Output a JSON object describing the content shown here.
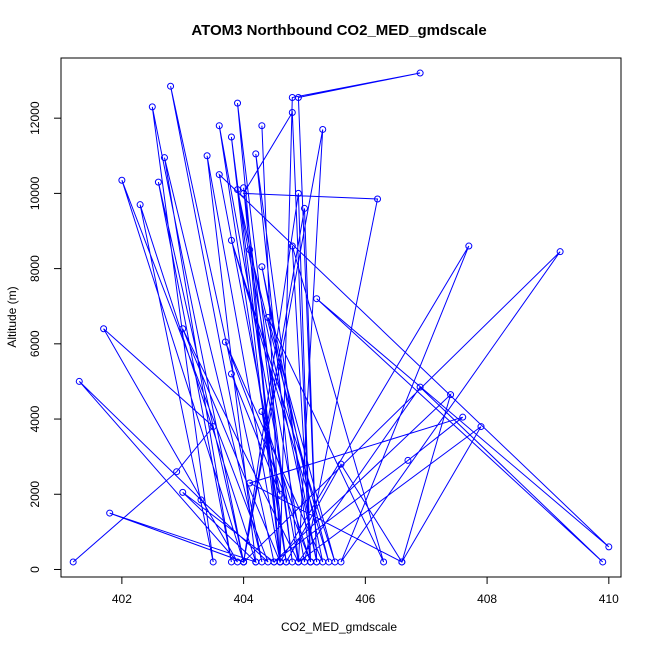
{
  "chart_data": {
    "type": "line",
    "title": "ATOM3 Northbound CO2_MED_gmdscale",
    "xlabel": "CO2_MED_gmdscale",
    "ylabel": "Altitude (m)",
    "xlim": [
      401.0,
      410.2
    ],
    "ylim": [
      -200,
      13600
    ],
    "xticks": [
      402,
      404,
      406,
      408,
      410
    ],
    "yticks": [
      0,
      2000,
      4000,
      6000,
      8000,
      10000,
      12000
    ],
    "xtick_labels": [
      "402",
      "404",
      "406",
      "408",
      "410"
    ],
    "ytick_labels": [
      "0",
      "2000",
      "4000",
      "6000",
      "8000",
      "10000",
      "12000"
    ],
    "series": [
      {
        "color": "#0000ff",
        "markers": "open-circle",
        "x": [
          401.2,
          402.9,
          403.5,
          401.7,
          403.9,
          401.3,
          403.3,
          404.4,
          402.0,
          404.0,
          401.8,
          404.2,
          402.3,
          403.5,
          402.5,
          404.0,
          402.6,
          403.8,
          402.7,
          404.3,
          402.8,
          404.5,
          403.0,
          404.2,
          403.4,
          404.6,
          403.0,
          404.9,
          403.6,
          404.7,
          403.8,
          404.6,
          403.9,
          404.8,
          404.0,
          404.6,
          404.3,
          404.6,
          404.8,
          406.9,
          404.9,
          405.2,
          403.9,
          405.0,
          406.2,
          404.0,
          404.8,
          405.1,
          404.2,
          404.9,
          405.3,
          404.0,
          405.0,
          405.2,
          404.3,
          405.3,
          403.7,
          405.1,
          404.8,
          406.3,
          404.4,
          405.5,
          403.8,
          405.4,
          404.1,
          404.6,
          407.7,
          405.6,
          409.2,
          404.0,
          404.9,
          405.1,
          404.3,
          404.7,
          405.6,
          406.6,
          407.4,
          404.5,
          406.7,
          407.6,
          404.1,
          406.6,
          407.9,
          404.9,
          406.9,
          409.9,
          405.2,
          410.0,
          403.6,
          404.6,
          403.8
        ],
        "y": [
          200,
          2600,
          3800,
          6400,
          200,
          5000,
          1850,
          200,
          10350,
          200,
          1500,
          200,
          9700,
          200,
          12300,
          200,
          10300,
          200,
          10950,
          200,
          12850,
          200,
          2050,
          200,
          11000,
          200,
          6400,
          200,
          11800,
          200,
          11500,
          200,
          12400,
          200,
          10150,
          200,
          11800,
          200,
          12550,
          13200,
          12550,
          200,
          10100,
          200,
          9850,
          10000,
          12150,
          200,
          11050,
          200,
          11700,
          200,
          9600,
          200,
          8050,
          200,
          6050,
          200,
          8600,
          200,
          6700,
          200,
          8750,
          200,
          8500,
          200,
          8600,
          200,
          8450,
          200,
          10000,
          200,
          4200,
          200,
          2800,
          200,
          4650,
          200,
          2900,
          4050,
          2300,
          200,
          3800,
          200,
          4850,
          200,
          7200,
          600,
          10500,
          2000,
          5200
        ]
      }
    ]
  }
}
